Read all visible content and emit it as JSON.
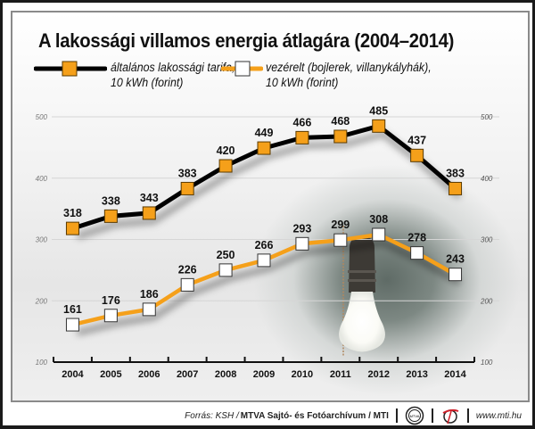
{
  "title": "A lakossági villamos energia átlagára (2004–2014)",
  "legend": [
    {
      "label_line1": "általános lakossági tarifa,",
      "label_line2": "10 kWh (forint)",
      "line_color": "#000000",
      "marker_fill": "#f5a01a"
    },
    {
      "label_line1": "vezérelt (bojlerek, villanykályhák),",
      "label_line2": "10 kWh (forint)",
      "line_color": "#f5a01a",
      "marker_fill": "#ffffff"
    }
  ],
  "chart_data": {
    "type": "line",
    "title": "A lakossági villamos energia átlagára (2004–2014)",
    "xlabel": "",
    "ylabel": "",
    "x": [
      "2004",
      "2005",
      "2006",
      "2007",
      "2008",
      "2009",
      "2010",
      "2011",
      "2012",
      "2013",
      "2014"
    ],
    "ylim": [
      100,
      500
    ],
    "yticks": [
      100,
      200,
      300,
      400,
      500
    ],
    "grid": true,
    "legend_position": "top-left",
    "series": [
      {
        "name": "általános lakossági tarifa, 10 kWh (forint)",
        "values": [
          318,
          338,
          343,
          383,
          420,
          449,
          466,
          468,
          485,
          437,
          383
        ],
        "color": "#000000",
        "marker_fill": "#f5a01a"
      },
      {
        "name": "vezérelt (bojlerek, villanykályhák), 10 kWh (forint)",
        "values": [
          161,
          176,
          186,
          226,
          250,
          266,
          293,
          299,
          308,
          278,
          243
        ],
        "color": "#f5a01a",
        "marker_fill": "#ffffff"
      }
    ]
  },
  "footer": {
    "source_prefix": "Forrás: KSH / ",
    "source_bold": "MTVA Sajtó- és Fotóarchívum / MTI",
    "logo1_text": "MTVA",
    "url": "www.mti.hu"
  }
}
